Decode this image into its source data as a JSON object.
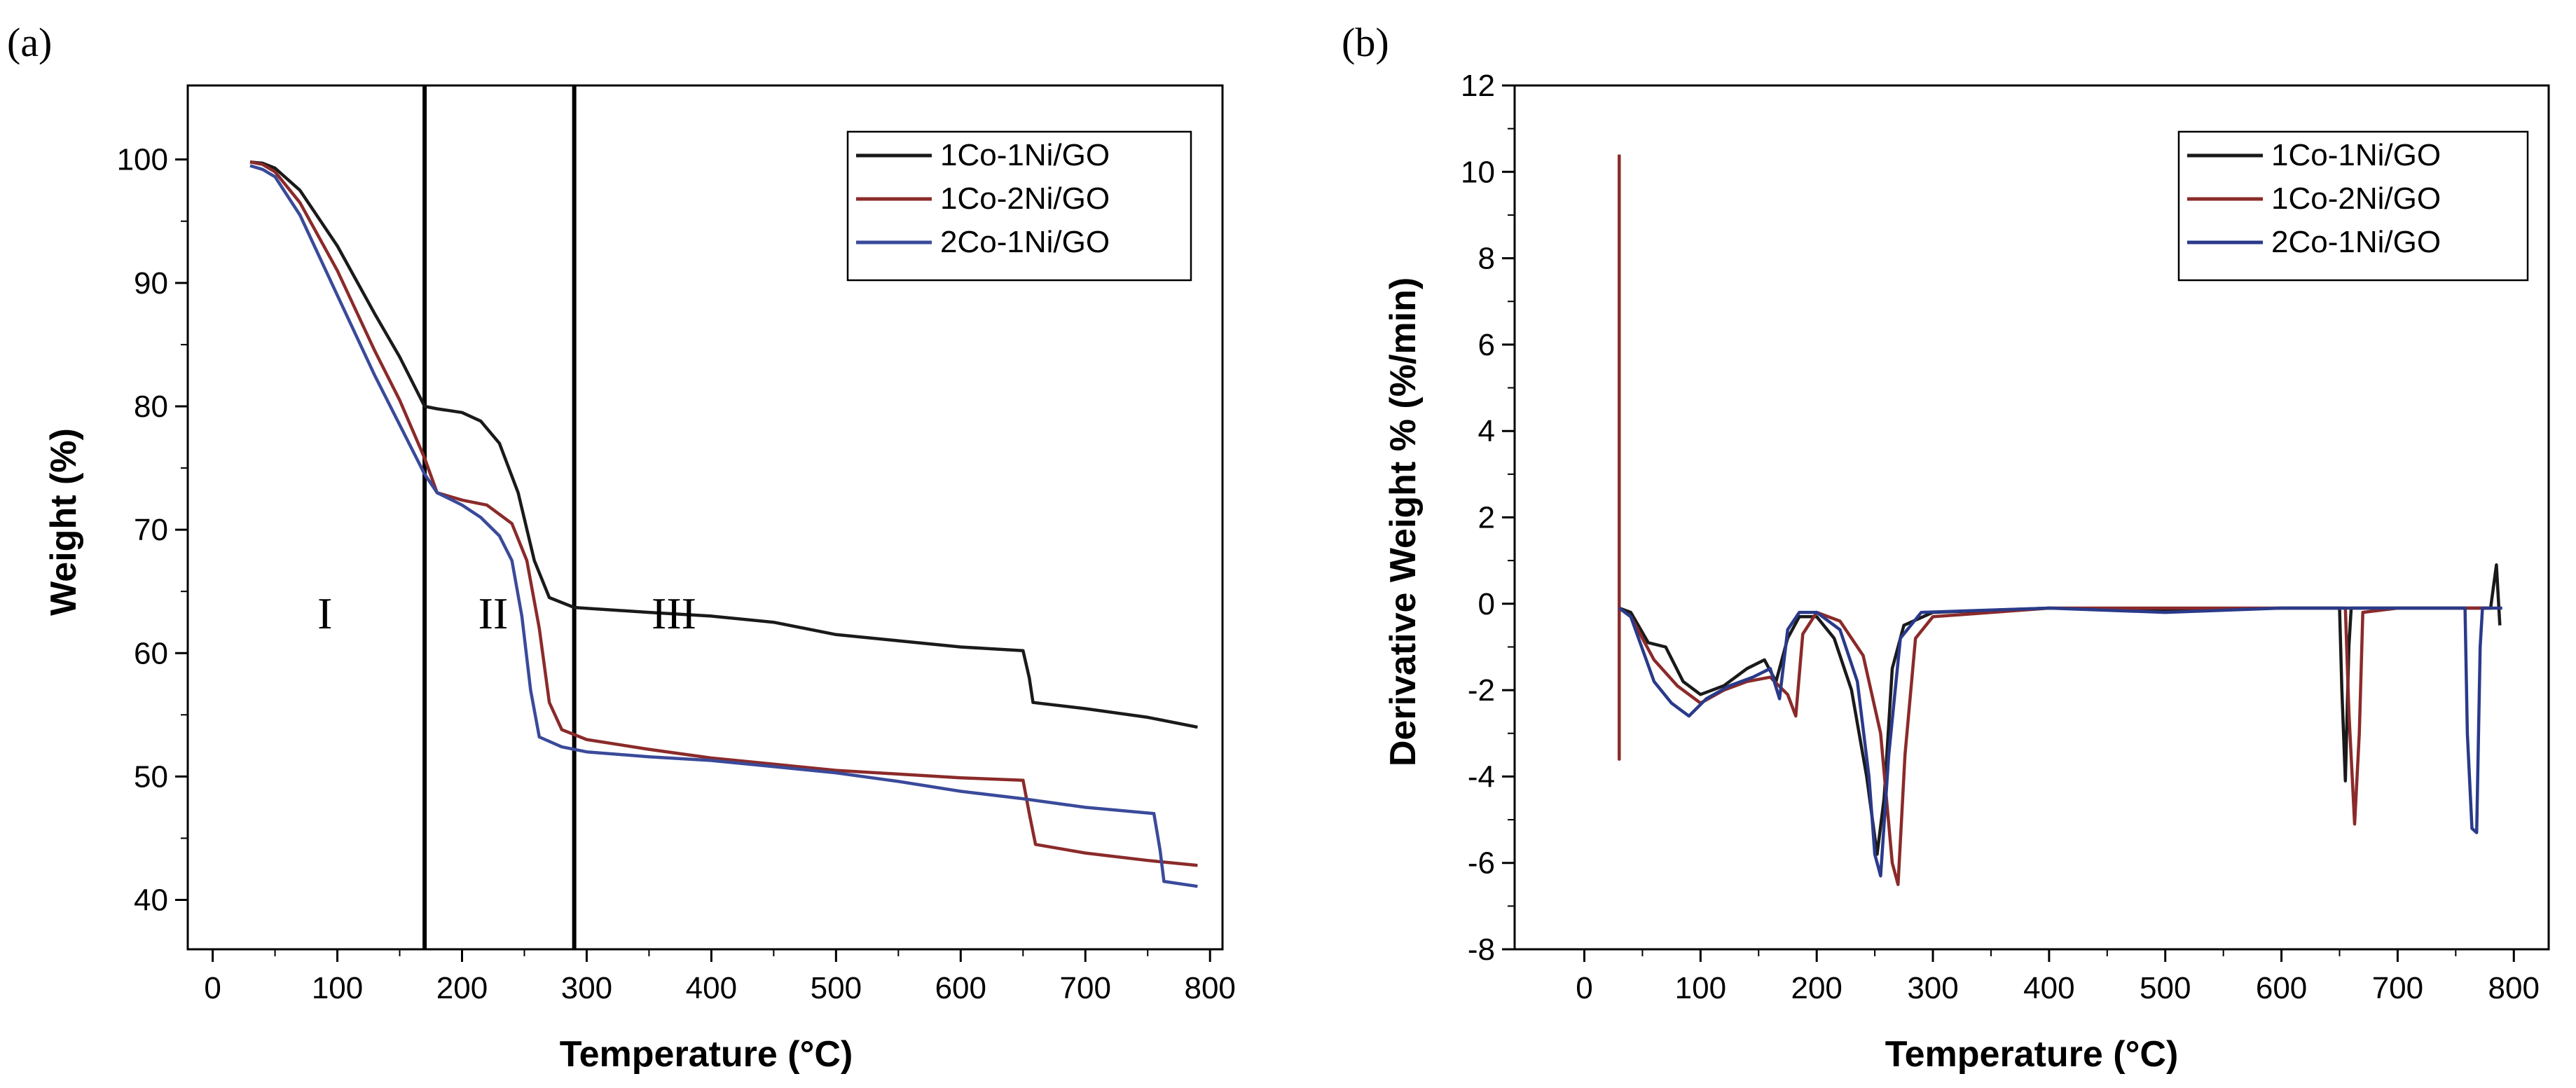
{
  "chart_data": [
    {
      "panel": "(a)",
      "type": "line",
      "title": "",
      "xlabel": "Temperature (°C)",
      "ylabel": "Weight (%)",
      "xlim": [
        -20,
        810
      ],
      "ylim": [
        36,
        106
      ],
      "xticks": [
        0,
        100,
        200,
        300,
        400,
        500,
        600,
        700,
        800
      ],
      "yticks": [
        40,
        50,
        60,
        70,
        80,
        90,
        100
      ],
      "legend": [
        "1Co-1Ni/GO",
        "1Co-2Ni/GO",
        "2Co-1Ni/GO"
      ],
      "legend_position": "top-right",
      "vertical_lines": [
        170,
        290
      ],
      "regions": [
        {
          "label": "I",
          "x": 90,
          "y": 62
        },
        {
          "label": "II",
          "x": 225,
          "y": 62
        },
        {
          "label": "III",
          "x": 370,
          "y": 62
        }
      ],
      "series": [
        {
          "name": "1Co-1Ni/GO",
          "color": "#1a1a1a",
          "points": [
            [
              30,
              99.8
            ],
            [
              40,
              99.7
            ],
            [
              50,
              99.3
            ],
            [
              70,
              97.5
            ],
            [
              100,
              93
            ],
            [
              130,
              87.5
            ],
            [
              150,
              84
            ],
            [
              170,
              80
            ],
            [
              180,
              79.8
            ],
            [
              200,
              79.5
            ],
            [
              215,
              78.8
            ],
            [
              230,
              77
            ],
            [
              245,
              73
            ],
            [
              258,
              67.5
            ],
            [
              270,
              64.5
            ],
            [
              290,
              63.7
            ],
            [
              350,
              63.3
            ],
            [
              400,
              63
            ],
            [
              450,
              62.5
            ],
            [
              500,
              61.5
            ],
            [
              550,
              61
            ],
            [
              600,
              60.5
            ],
            [
              650,
              60.2
            ],
            [
              655,
              58
            ],
            [
              658,
              56
            ],
            [
              700,
              55.5
            ],
            [
              750,
              54.8
            ],
            [
              790,
              54
            ]
          ]
        },
        {
          "name": "1Co-2Ni/GO",
          "color": "#8b2a2a",
          "points": [
            [
              30,
              99.8
            ],
            [
              40,
              99.6
            ],
            [
              50,
              99
            ],
            [
              70,
              96.5
            ],
            [
              100,
              91
            ],
            [
              130,
              84.5
            ],
            [
              150,
              80.5
            ],
            [
              170,
              75.8
            ],
            [
              180,
              73
            ],
            [
              200,
              72.4
            ],
            [
              220,
              72
            ],
            [
              240,
              70.5
            ],
            [
              252,
              67.5
            ],
            [
              262,
              62
            ],
            [
              270,
              56
            ],
            [
              280,
              53.8
            ],
            [
              300,
              53
            ],
            [
              350,
              52.2
            ],
            [
              400,
              51.5
            ],
            [
              450,
              51
            ],
            [
              500,
              50.5
            ],
            [
              550,
              50.2
            ],
            [
              600,
              49.9
            ],
            [
              650,
              49.7
            ],
            [
              655,
              47
            ],
            [
              660,
              44.5
            ],
            [
              700,
              43.8
            ],
            [
              750,
              43.2
            ],
            [
              790,
              42.8
            ]
          ]
        },
        {
          "name": "2Co-1Ni/GO",
          "color": "#3a4a9a",
          "points": [
            [
              30,
              99.5
            ],
            [
              40,
              99.2
            ],
            [
              50,
              98.6
            ],
            [
              70,
              95.5
            ],
            [
              100,
              89
            ],
            [
              130,
              82.5
            ],
            [
              150,
              78.5
            ],
            [
              170,
              74.5
            ],
            [
              180,
              73
            ],
            [
              200,
              72
            ],
            [
              215,
              71
            ],
            [
              230,
              69.5
            ],
            [
              240,
              67.5
            ],
            [
              248,
              63
            ],
            [
              255,
              57
            ],
            [
              262,
              53.2
            ],
            [
              280,
              52.4
            ],
            [
              300,
              52
            ],
            [
              350,
              51.6
            ],
            [
              400,
              51.3
            ],
            [
              450,
              50.8
            ],
            [
              500,
              50.3
            ],
            [
              550,
              49.6
            ],
            [
              600,
              48.8
            ],
            [
              650,
              48.2
            ],
            [
              700,
              47.5
            ],
            [
              755,
              47
            ],
            [
              760,
              44
            ],
            [
              763,
              41.5
            ],
            [
              790,
              41.1
            ]
          ]
        }
      ]
    },
    {
      "panel": "(b)",
      "type": "line",
      "title": "",
      "xlabel": "Temperature (°C)",
      "ylabel": "Derivative Weight % (%/min)",
      "xlim": [
        -60,
        830
      ],
      "ylim": [
        -8,
        12
      ],
      "xticks": [
        0,
        100,
        200,
        300,
        400,
        500,
        600,
        700,
        800
      ],
      "yticks": [
        -8,
        -6,
        -4,
        -2,
        0,
        2,
        4,
        6,
        8,
        10,
        12
      ],
      "legend": [
        "1Co-1Ni/GO",
        "1Co-2Ni/GO",
        "2Co-1Ni/GO"
      ],
      "legend_position": "top-right",
      "series": [
        {
          "name": "1Co-1Ni/GO",
          "color": "#1a1a1a",
          "points": [
            [
              30,
              -0.1
            ],
            [
              40,
              -0.2
            ],
            [
              55,
              -0.9
            ],
            [
              70,
              -1.0
            ],
            [
              85,
              -1.8
            ],
            [
              100,
              -2.1
            ],
            [
              120,
              -1.9
            ],
            [
              140,
              -1.5
            ],
            [
              155,
              -1.3
            ],
            [
              165,
              -1.8
            ],
            [
              175,
              -0.8
            ],
            [
              185,
              -0.3
            ],
            [
              200,
              -0.3
            ],
            [
              215,
              -0.8
            ],
            [
              230,
              -2.0
            ],
            [
              243,
              -4.0
            ],
            [
              252,
              -5.8
            ],
            [
              258,
              -4.5
            ],
            [
              265,
              -1.5
            ],
            [
              275,
              -0.5
            ],
            [
              300,
              -0.2
            ],
            [
              400,
              -0.1
            ],
            [
              500,
              -0.15
            ],
            [
              600,
              -0.1
            ],
            [
              650,
              -0.1
            ],
            [
              652,
              -2
            ],
            [
              655,
              -4.1
            ],
            [
              658,
              -1
            ],
            [
              660,
              -0.1
            ],
            [
              700,
              -0.1
            ],
            [
              750,
              -0.1
            ],
            [
              780,
              -0.1
            ],
            [
              785,
              0.9
            ],
            [
              788,
              -0.5
            ]
          ]
        },
        {
          "name": "1Co-2Ni/GO",
          "color": "#8b2a2a",
          "points": [
            [
              30,
              10.4
            ],
            [
              30,
              -3.6
            ],
            [
              30,
              -0.1
            ],
            [
              40,
              -0.3
            ],
            [
              60,
              -1.3
            ],
            [
              80,
              -1.9
            ],
            [
              100,
              -2.3
            ],
            [
              120,
              -2.0
            ],
            [
              140,
              -1.8
            ],
            [
              160,
              -1.7
            ],
            [
              175,
              -2.1
            ],
            [
              182,
              -2.6
            ],
            [
              188,
              -0.7
            ],
            [
              200,
              -0.2
            ],
            [
              220,
              -0.4
            ],
            [
              240,
              -1.2
            ],
            [
              255,
              -3.0
            ],
            [
              265,
              -6.0
            ],
            [
              270,
              -6.5
            ],
            [
              276,
              -3.5
            ],
            [
              285,
              -0.8
            ],
            [
              300,
              -0.3
            ],
            [
              400,
              -0.1
            ],
            [
              500,
              -0.1
            ],
            [
              600,
              -0.1
            ],
            [
              655,
              -0.1
            ],
            [
              658,
              -2.5
            ],
            [
              663,
              -5.1
            ],
            [
              667,
              -3
            ],
            [
              670,
              -0.2
            ],
            [
              700,
              -0.1
            ],
            [
              780,
              -0.1
            ]
          ]
        },
        {
          "name": "2Co-1Ni/GO",
          "color": "#2a3a8a",
          "points": [
            [
              30,
              -0.1
            ],
            [
              40,
              -0.3
            ],
            [
              60,
              -1.8
            ],
            [
              75,
              -2.3
            ],
            [
              90,
              -2.6
            ],
            [
              105,
              -2.2
            ],
            [
              125,
              -1.9
            ],
            [
              145,
              -1.7
            ],
            [
              160,
              -1.5
            ],
            [
              168,
              -2.2
            ],
            [
              175,
              -0.6
            ],
            [
              185,
              -0.2
            ],
            [
              200,
              -0.2
            ],
            [
              220,
              -0.6
            ],
            [
              235,
              -1.8
            ],
            [
              245,
              -4.0
            ],
            [
              250,
              -5.8
            ],
            [
              255,
              -6.3
            ],
            [
              262,
              -3.5
            ],
            [
              272,
              -0.8
            ],
            [
              290,
              -0.2
            ],
            [
              400,
              -0.1
            ],
            [
              500,
              -0.2
            ],
            [
              600,
              -0.1
            ],
            [
              650,
              -0.1
            ],
            [
              758,
              -0.1
            ],
            [
              760,
              -3
            ],
            [
              764,
              -5.2
            ],
            [
              768,
              -5.3
            ],
            [
              771,
              -1
            ],
            [
              773,
              -0.1
            ],
            [
              790,
              -0.1
            ]
          ]
        }
      ]
    }
  ]
}
